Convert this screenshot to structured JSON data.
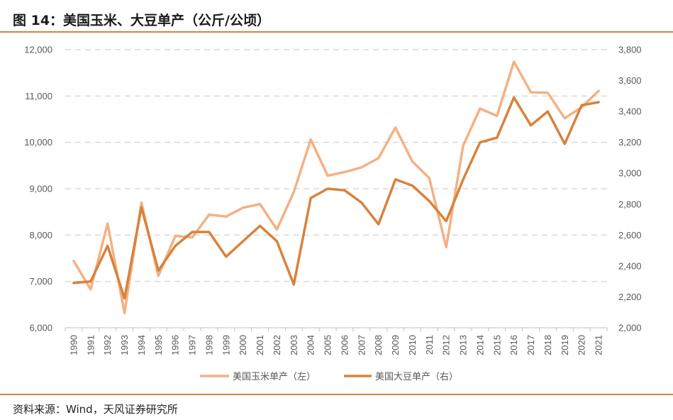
{
  "title": "图 14：美国玉米、大豆单产（公斤/公顷）",
  "source": "资料来源：Wind，天风证券研究所",
  "colors": {
    "corn": "#f4b183",
    "soy": "#d9823b",
    "grid": "#d9d9d9",
    "rule": "#cc8a3c"
  },
  "chart_data": {
    "type": "line",
    "categories": [
      "1990",
      "1991",
      "1992",
      "1993",
      "1994",
      "1995",
      "1996",
      "1997",
      "1998",
      "1999",
      "2000",
      "2001",
      "2002",
      "2003",
      "2004",
      "2005",
      "2006",
      "2007",
      "2008",
      "2009",
      "2010",
      "2011",
      "2012",
      "2013",
      "2014",
      "2015",
      "2016",
      "2017",
      "2018",
      "2019",
      "2020",
      "2021"
    ],
    "left_axis": {
      "ylim": [
        6000,
        12000
      ],
      "ticks": [
        6000,
        7000,
        8000,
        9000,
        10000,
        11000,
        12000
      ],
      "tick_labels": [
        "6,000",
        "7,000",
        "8,000",
        "9,000",
        "10,000",
        "11,000",
        "12,000"
      ]
    },
    "right_axis": {
      "ylim": [
        2000,
        3800
      ],
      "ticks": [
        2000,
        2200,
        2400,
        2600,
        2800,
        3000,
        3200,
        3400,
        3600,
        3800
      ],
      "tick_labels": [
        "2,000",
        "2,200",
        "2,400",
        "2,600",
        "2,800",
        "3,000",
        "3,200",
        "3,400",
        "3,600",
        "3,800"
      ]
    },
    "grid": true,
    "legend_position": "bottom",
    "series": [
      {
        "name": "美国玉米单产（左）",
        "axis": "left",
        "values": [
          7440,
          6830,
          8250,
          6320,
          8700,
          7120,
          7980,
          7950,
          8440,
          8400,
          8590,
          8670,
          8120,
          8930,
          10060,
          9280,
          9360,
          9460,
          9660,
          10320,
          9590,
          9230,
          7740,
          9930,
          10730,
          10570,
          11740,
          11080,
          11070,
          10520,
          10760,
          11110
        ]
      },
      {
        "name": "美国大豆单产（右）",
        "axis": "right",
        "values": [
          2290,
          2300,
          2530,
          2190,
          2780,
          2370,
          2530,
          2620,
          2620,
          2460,
          2560,
          2660,
          2560,
          2280,
          2840,
          2900,
          2890,
          2810,
          2670,
          2960,
          2920,
          2820,
          2690,
          2960,
          3200,
          3230,
          3490,
          3310,
          3400,
          3190,
          3440,
          3460
        ]
      }
    ]
  }
}
